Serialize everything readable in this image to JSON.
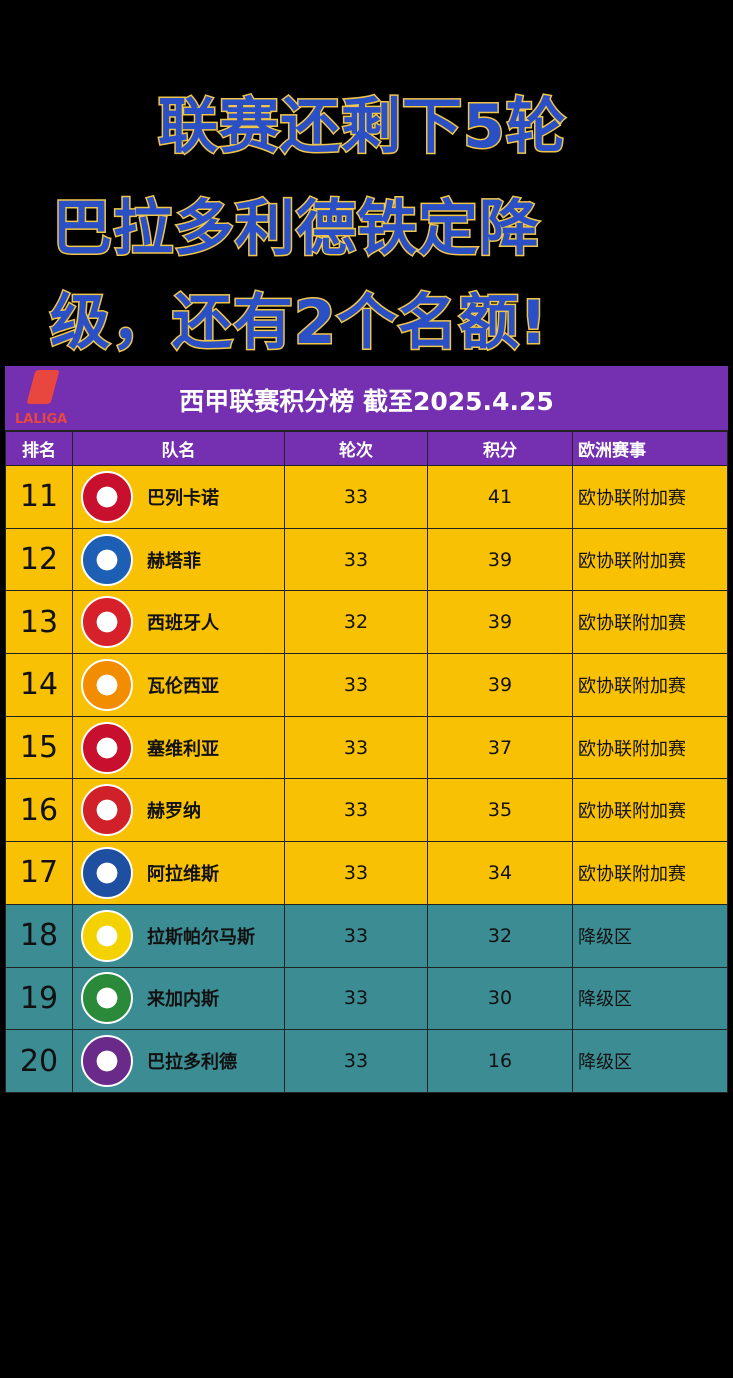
{
  "headline": [
    "联赛还剩下5轮",
    "巴拉多利德铁定降",
    "级，还有2个名额!"
  ],
  "table": {
    "logo_text": "LALIGA",
    "title": "西甲联赛积分榜 截至2025.4.25",
    "columns": [
      "排名",
      "队名",
      "轮次",
      "积分",
      "欧洲赛事"
    ],
    "rows": [
      {
        "rank": "11",
        "team": "巴列卡诺",
        "played": "33",
        "points": "41",
        "europe": "欧协联附加赛",
        "zone": "playoff",
        "crest": "#c8102e"
      },
      {
        "rank": "12",
        "team": "赫塔菲",
        "played": "33",
        "points": "39",
        "europe": "欧协联附加赛",
        "zone": "playoff",
        "crest": "#1d5fb5"
      },
      {
        "rank": "13",
        "team": "西班牙人",
        "played": "32",
        "points": "39",
        "europe": "欧协联附加赛",
        "zone": "playoff",
        "crest": "#d6202a"
      },
      {
        "rank": "14",
        "team": "瓦伦西亚",
        "played": "33",
        "points": "39",
        "europe": "欧协联附加赛",
        "zone": "playoff",
        "crest": "#f28c00"
      },
      {
        "rank": "15",
        "team": "塞维利亚",
        "played": "33",
        "points": "37",
        "europe": "欧协联附加赛",
        "zone": "playoff",
        "crest": "#c8102e"
      },
      {
        "rank": "16",
        "team": "赫罗纳",
        "played": "33",
        "points": "35",
        "europe": "欧协联附加赛",
        "zone": "playoff",
        "crest": "#d0202a"
      },
      {
        "rank": "17",
        "team": "阿拉维斯",
        "played": "33",
        "points": "34",
        "europe": "欧协联附加赛",
        "zone": "playoff",
        "crest": "#1e4fa0"
      },
      {
        "rank": "18",
        "team": "拉斯帕尔马斯",
        "played": "33",
        "points": "32",
        "europe": "降级区",
        "zone": "relegation",
        "crest": "#f4d200"
      },
      {
        "rank": "19",
        "team": "来加内斯",
        "played": "33",
        "points": "30",
        "europe": "降级区",
        "zone": "relegation",
        "crest": "#2a8a3a"
      },
      {
        "rank": "20",
        "team": "巴拉多利德",
        "played": "33",
        "points": "16",
        "europe": "降级区",
        "zone": "relegation",
        "crest": "#6a2a8a"
      }
    ]
  },
  "colors": {
    "header": "#7430b0",
    "playoff": "#f8c103",
    "relegation": "#3b8c93",
    "headline": "#2b4fc4"
  }
}
